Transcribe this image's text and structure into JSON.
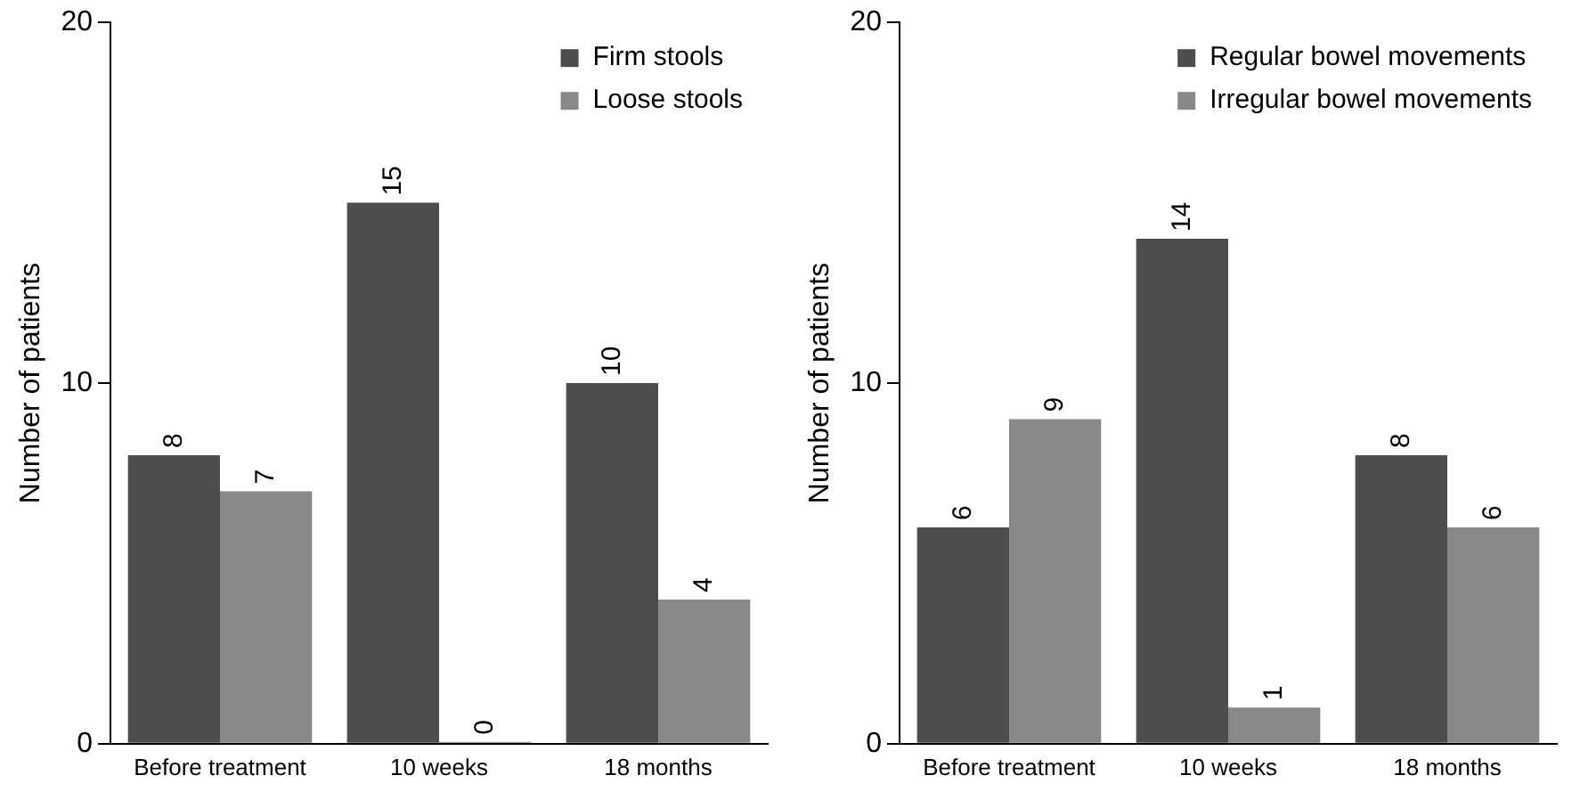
{
  "chart_data": [
    {
      "type": "bar",
      "ylabel": "Number of patients",
      "categories": [
        "Before treatment",
        "10 weeks",
        "18 months"
      ],
      "series": [
        {
          "name": "Firm stools",
          "color": "#4d4d4d",
          "values": [
            8,
            15,
            10
          ]
        },
        {
          "name": "Loose stools",
          "color": "#888888",
          "values": [
            7,
            0,
            4
          ]
        }
      ],
      "ylim": [
        0,
        20
      ],
      "yticks": [
        0,
        10,
        20
      ],
      "grid": false,
      "legend": "top right",
      "data_labels": true
    },
    {
      "type": "bar",
      "ylabel": "Number of patients",
      "categories": [
        "Before treatment",
        "10 weeks",
        "18 months"
      ],
      "series": [
        {
          "name": "Regular bowel movements",
          "color": "#4d4d4d",
          "values": [
            6,
            14,
            8
          ]
        },
        {
          "name": "Irregular bowel movements",
          "color": "#888888",
          "values": [
            9,
            1,
            6
          ]
        }
      ],
      "ylim": [
        0,
        20
      ],
      "yticks": [
        0,
        10,
        20
      ],
      "grid": false,
      "legend": "top right",
      "data_labels": true
    }
  ]
}
